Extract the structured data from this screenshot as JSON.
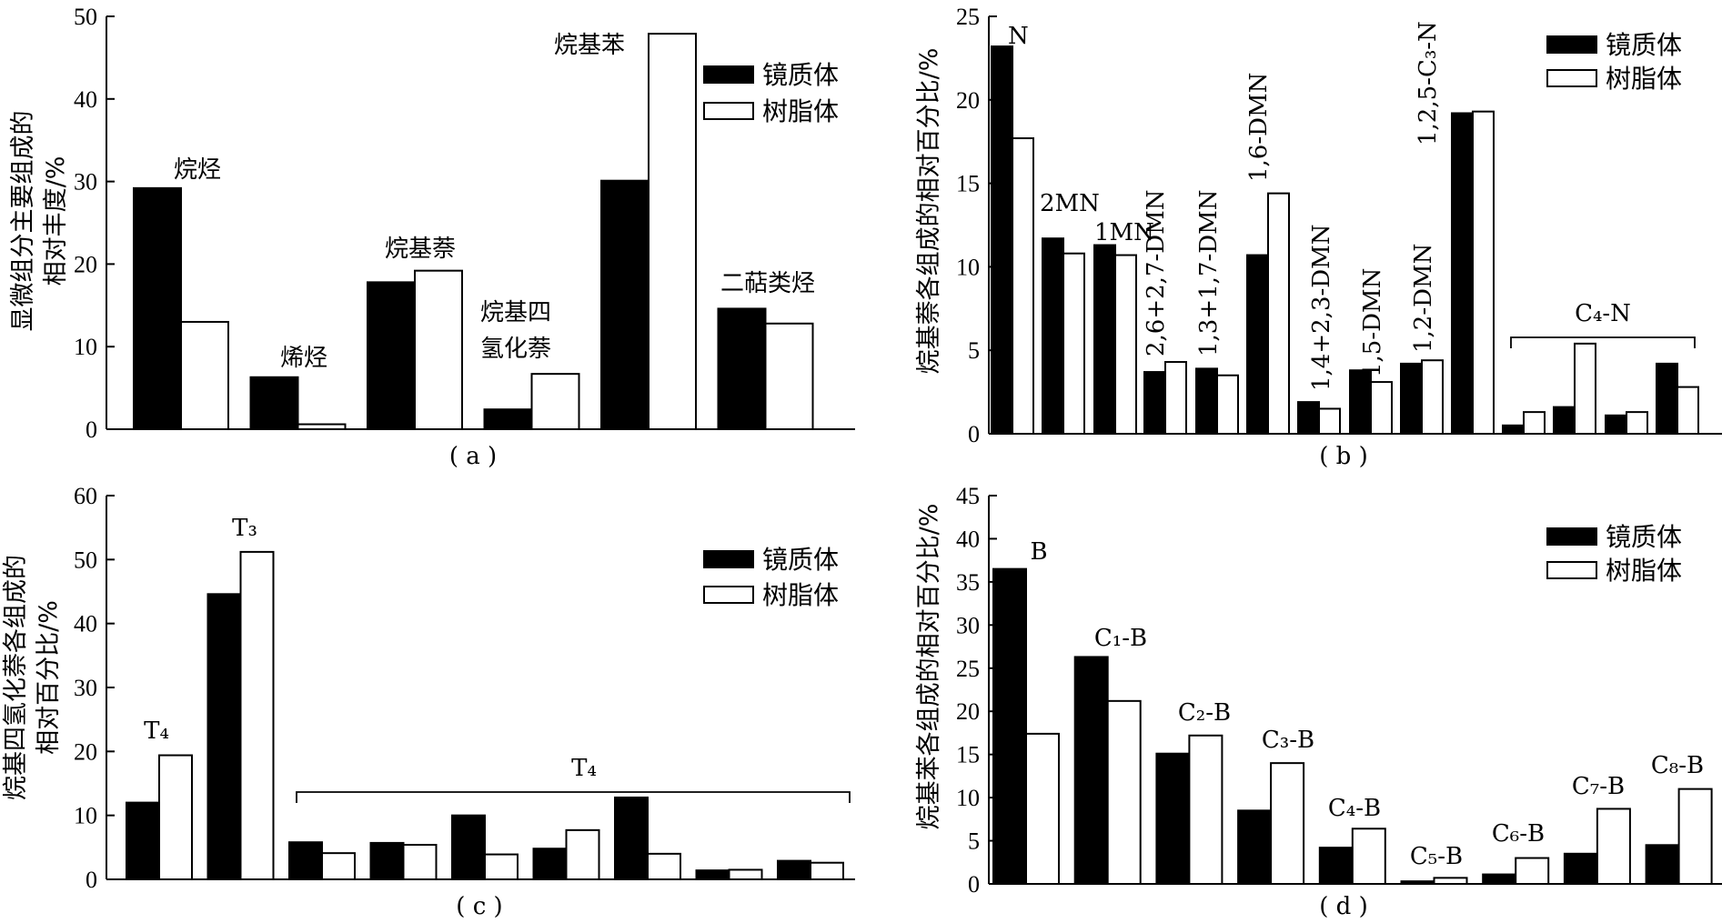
{
  "legend": {
    "series1": "镜质体",
    "series2": "树脂体"
  },
  "chart_data": [
    {
      "id": "a",
      "type": "bar",
      "caption": "( a )",
      "ylabel": [
        "显微组分主要组成的",
        "相对丰度/%"
      ],
      "ylim": [
        0,
        50
      ],
      "yticks": [
        0,
        10,
        20,
        30,
        40,
        50
      ],
      "categories": [
        "烷烃",
        "烯烃",
        "烷基萘",
        "烷基四氢化萘",
        "烷基苯",
        "二萜类烃"
      ],
      "category_labels": [
        [
          "烷烃"
        ],
        [
          "烯烃"
        ],
        [
          "烷基萘"
        ],
        [
          "烷基四",
          "氢化萘"
        ],
        [
          "烷基苯"
        ],
        [
          "二萜类烃"
        ]
      ],
      "series": [
        {
          "name": "镜质体",
          "values": [
            29.2,
            6.3,
            17.8,
            2.4,
            30.1,
            14.6
          ]
        },
        {
          "name": "树脂体",
          "values": [
            13.0,
            0.6,
            19.2,
            6.7,
            47.9,
            12.8
          ]
        }
      ],
      "legend_position": "top-right"
    },
    {
      "id": "b",
      "type": "bar",
      "caption": "( b )",
      "ylabel": [
        "烷基萘各组成的相对百分比/%"
      ],
      "ylim": [
        0,
        25
      ],
      "yticks": [
        0,
        5,
        10,
        15,
        20,
        25
      ],
      "categories": [
        "N",
        "2MN",
        "1MN",
        "2,6+2,7-DMN",
        "1,3+1,7-DMN",
        "1,6-DMN",
        "1,4+2,3-DMN",
        "1,5-DMN",
        "1,2-DMN",
        "1,2,5-C3-N",
        "C4-N",
        "C4-N",
        "C4-N",
        "C4-N"
      ],
      "series": [
        {
          "name": "镜质体",
          "values": [
            23.2,
            11.7,
            11.3,
            3.7,
            3.9,
            10.7,
            1.9,
            3.8,
            4.2,
            19.2,
            0.5,
            1.6,
            1.1,
            4.2
          ]
        },
        {
          "name": "树脂体",
          "values": [
            17.7,
            10.8,
            10.7,
            4.3,
            3.5,
            14.4,
            1.5,
            3.1,
            4.4,
            19.3,
            1.3,
            5.4,
            1.3,
            2.8
          ]
        }
      ],
      "annotations": [
        "N",
        "2MN",
        "1MN",
        "2,6+2,7-DMN",
        "1,3+1,7-DMN",
        "1,6-DMN",
        "1,4+2,3-DMN",
        "1,5-DMN",
        "1,2-DMN",
        "1,2,5-C₃-N",
        "C₄-N"
      ],
      "legend_position": "top-right"
    },
    {
      "id": "c",
      "type": "bar",
      "caption": "( c )",
      "ylabel": [
        "烷基四氢化萘各组成的",
        "相对百分比/%"
      ],
      "ylim": [
        0,
        60
      ],
      "yticks": [
        0,
        10,
        20,
        30,
        40,
        50,
        60
      ],
      "categories": [
        "T4",
        "T3",
        "T4",
        "T4",
        "T4",
        "T4",
        "T4",
        "T4",
        "T4"
      ],
      "series": [
        {
          "name": "镜质体",
          "values": [
            12.0,
            44.6,
            5.8,
            5.7,
            10.0,
            4.8,
            12.8,
            1.4,
            2.9
          ]
        },
        {
          "name": "树脂体",
          "values": [
            19.4,
            51.2,
            4.1,
            5.4,
            3.9,
            7.7,
            4.0,
            1.5,
            2.6
          ]
        }
      ],
      "annotations": [
        "T₄",
        "T₃",
        "T₄"
      ],
      "legend_position": "top-right"
    },
    {
      "id": "d",
      "type": "bar",
      "caption": "( d )",
      "ylabel": [
        "烷基苯各组成的相对百分比/%"
      ],
      "ylim": [
        0,
        45
      ],
      "yticks": [
        0,
        5,
        10,
        15,
        20,
        25,
        30,
        35,
        40,
        45
      ],
      "categories": [
        "B",
        "C₁-B",
        "C₂-B",
        "C₃-B",
        "C₄-B",
        "C₅-B",
        "C₆-B",
        "C₇-B",
        "C₈-B"
      ],
      "series": [
        {
          "name": "镜质体",
          "values": [
            36.5,
            26.3,
            15.1,
            8.5,
            4.2,
            0.3,
            1.1,
            3.5,
            4.5
          ]
        },
        {
          "name": "树脂体",
          "values": [
            17.4,
            21.2,
            17.2,
            14.0,
            6.4,
            0.7,
            3.0,
            8.7,
            11.0
          ]
        }
      ],
      "legend_position": "top-right"
    }
  ]
}
